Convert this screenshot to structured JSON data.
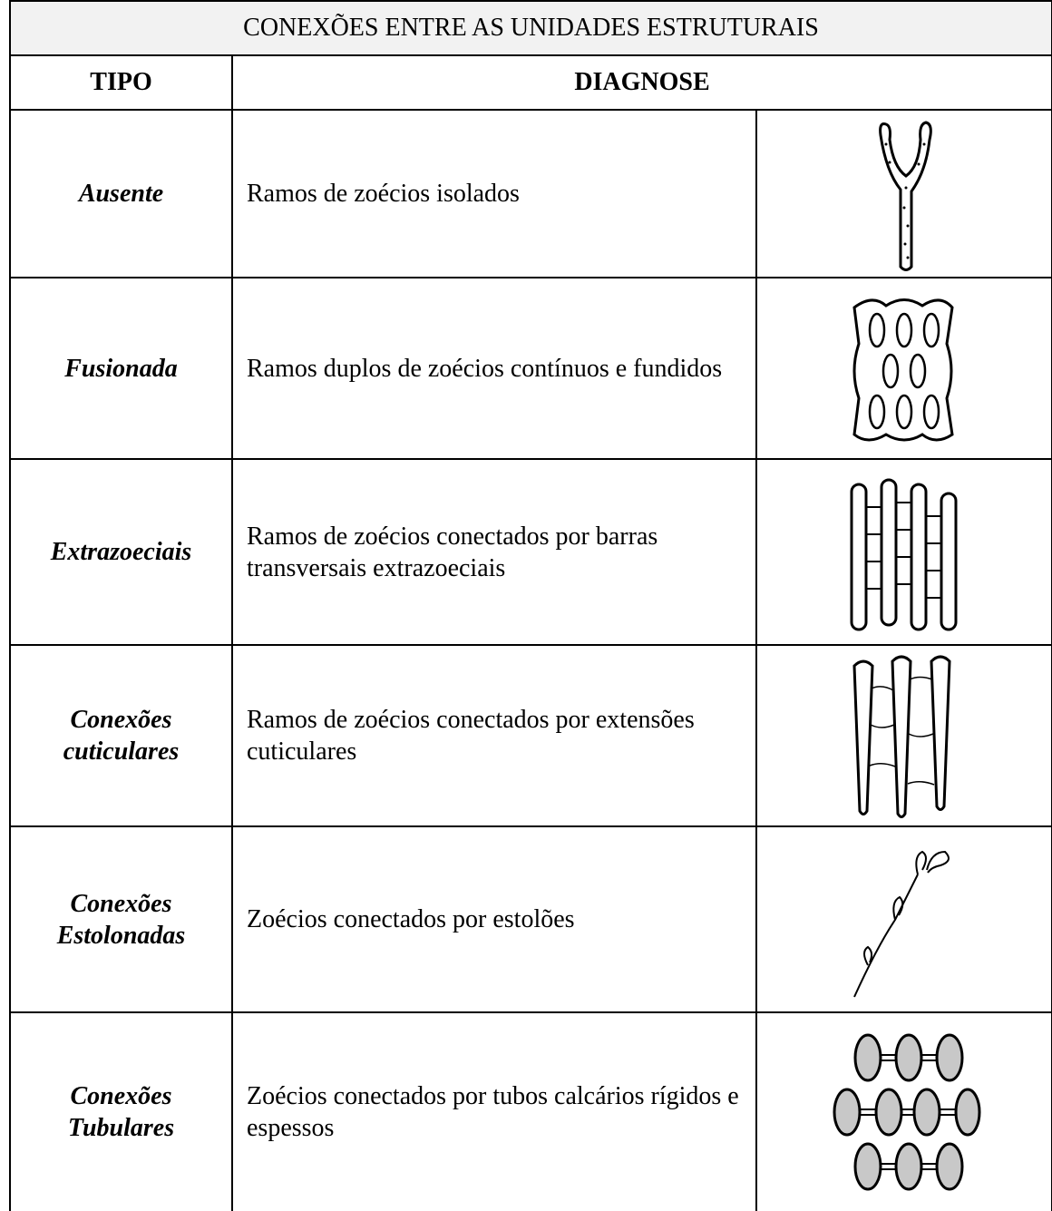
{
  "title": "CONEXÕES ENTRE AS UNIDADES ESTRUTURAIS",
  "header": {
    "tipo": "TIPO",
    "diagnose": "DIAGNOSE"
  },
  "rows": [
    {
      "tipo": "Ausente",
      "diagnose": "Ramos de zoécios isolados"
    },
    {
      "tipo": "Fusionada",
      "diagnose": "Ramos duplos de zoécios contínuos e fundidos"
    },
    {
      "tipo": "Extrazoeciais",
      "diagnose": "Ramos de zoécios conectados por barras transversais extrazoeciais"
    },
    {
      "tipo": "Conexões cuticulares",
      "diagnose": "Ramos de zoécios conectados por extensões cuticulares"
    },
    {
      "tipo": "Conexões Estolonadas",
      "diagnose": "Zoécios conectados por estolões"
    },
    {
      "tipo": "Conexões Tubulares",
      "diagnose": "Zoécios conectados por tubos calcários rígidos e espessos"
    }
  ]
}
